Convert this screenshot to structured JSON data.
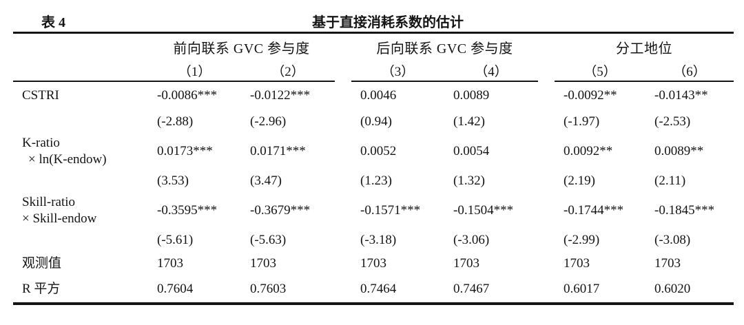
{
  "table": {
    "caption": "表 4",
    "title": "基于直接消耗系数的估计",
    "column_groups": [
      {
        "label": "前向联系 GVC 参与度",
        "columns": [
          "（1）",
          "（2）"
        ]
      },
      {
        "label": "后向联系 GVC 参与度",
        "columns": [
          "（3）",
          "（4）"
        ]
      },
      {
        "label": "分工地位",
        "columns": [
          "（5）",
          "（6）"
        ]
      }
    ],
    "variables": [
      {
        "name": [
          "CSTRI"
        ],
        "coefs": [
          "-0.0086***",
          "-0.0122***",
          "0.0046",
          "0.0089",
          "-0.0092**",
          "-0.0143**"
        ],
        "tstats": [
          "(-2.88)",
          "(-2.96)",
          "(0.94)",
          "(1.42)",
          "(-1.97)",
          "(-2.53)"
        ]
      },
      {
        "name": [
          "K-ratio",
          "× ln(K-endow)"
        ],
        "coefs": [
          "0.0173***",
          "0.0171***",
          "0.0052",
          "0.0054",
          "0.0092**",
          "0.0089**"
        ],
        "tstats": [
          "(3.53)",
          "(3.47)",
          "(1.23)",
          "(1.32)",
          "(2.19)",
          "(2.11)"
        ]
      },
      {
        "name": [
          "Skill-ratio",
          "× Skill-endow"
        ],
        "coefs": [
          "-0.3595***",
          "-0.3679***",
          "-0.1571***",
          "-0.1504***",
          "-0.1744***",
          "-0.1845***"
        ],
        "tstats": [
          "(-5.61)",
          "(-5.63)",
          "(-3.18)",
          "(-3.06)",
          "(-2.99)",
          "(-3.08)"
        ]
      }
    ],
    "stats": [
      {
        "label": "观测值",
        "values": [
          "1703",
          "1703",
          "1703",
          "1703",
          "1703",
          "1703"
        ]
      },
      {
        "label": "R 平方",
        "values": [
          "0.7604",
          "0.7603",
          "0.7464",
          "0.7467",
          "0.6017",
          "0.6020"
        ]
      }
    ]
  }
}
